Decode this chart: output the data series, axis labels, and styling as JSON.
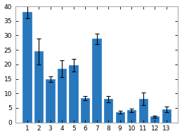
{
  "categories": [
    1,
    2,
    3,
    4,
    5,
    6,
    7,
    8,
    9,
    10,
    11,
    12,
    13
  ],
  "values": [
    38,
    24.5,
    14.8,
    18.5,
    19.8,
    8.3,
    28.8,
    8.0,
    3.5,
    4.2,
    8.1,
    2.0,
    4.5
  ],
  "errors": [
    2.0,
    4.5,
    1.0,
    2.8,
    2.2,
    0.7,
    1.8,
    1.0,
    0.4,
    0.6,
    2.2,
    0.4,
    0.9
  ],
  "bar_color": "#2878be",
  "ylim": [
    0,
    40
  ],
  "yticks": [
    0,
    5,
    10,
    15,
    20,
    25,
    30,
    35,
    40
  ],
  "background_color": "#ffffff",
  "figsize": [
    2.59,
    1.94
  ],
  "dpi": 100
}
